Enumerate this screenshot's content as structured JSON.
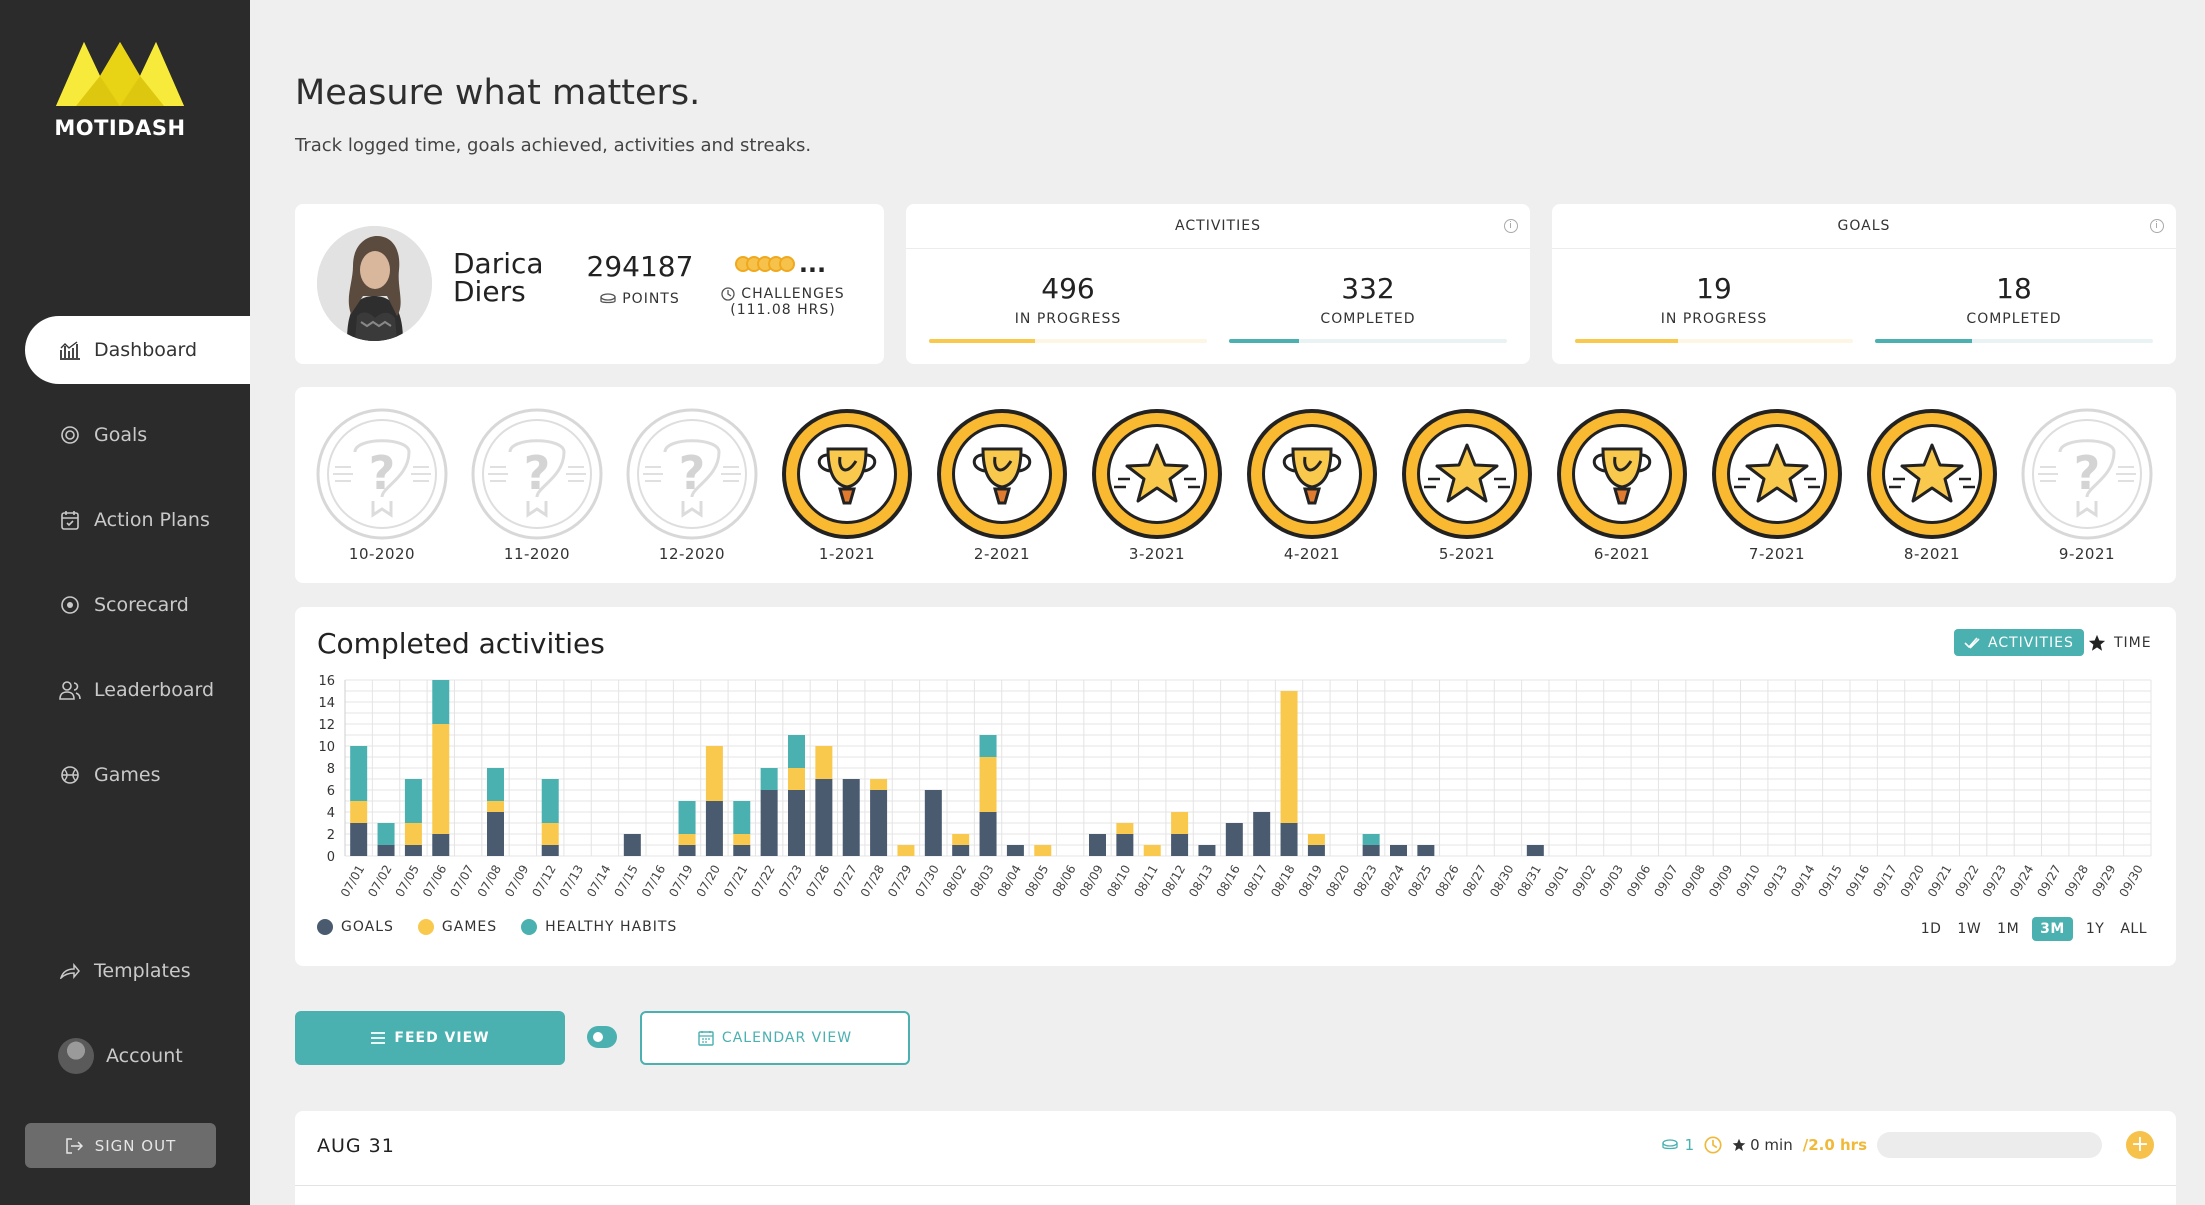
{
  "brand": {
    "name": "MOTIDASH"
  },
  "sidebar": {
    "items": [
      {
        "label": "Dashboard",
        "icon": "chart-icon",
        "active": true
      },
      {
        "label": "Goals",
        "icon": "target-icon",
        "active": false
      },
      {
        "label": "Action Plans",
        "icon": "calendar-check-icon",
        "active": false
      },
      {
        "label": "Scorecard",
        "icon": "scorecard-icon",
        "active": false
      },
      {
        "label": "Leaderboard",
        "icon": "users-icon",
        "active": false
      },
      {
        "label": "Games",
        "icon": "ball-icon",
        "active": false
      }
    ],
    "templates_label": "Templates",
    "account_label": "Account",
    "signout_label": "SIGN OUT"
  },
  "header": {
    "title": "Measure what matters.",
    "subtitle": "Track logged time, goals achieved, activities and streaks."
  },
  "profile": {
    "first_name": "Darica",
    "last_name": "Diers",
    "points": "294187",
    "points_label": "POINTS",
    "challenges_more": "...",
    "challenges_label": "CHALLENGES",
    "challenges_sub": "(111.08 HRS)"
  },
  "activities": {
    "title": "ACTIVITIES",
    "in_progress": "496",
    "in_progress_label": "IN PROGRESS",
    "completed": "332",
    "completed_label": "COMPLETED",
    "in_progress_fill": 0.38,
    "completed_fill": 0.25
  },
  "goals": {
    "title": "GOALS",
    "in_progress": "19",
    "in_progress_label": "IN PROGRESS",
    "completed": "18",
    "completed_label": "COMPLETED",
    "in_progress_fill": 0.37,
    "completed_fill": 0.35
  },
  "badges": [
    {
      "label": "10-2020",
      "type": "locked"
    },
    {
      "label": "11-2020",
      "type": "locked"
    },
    {
      "label": "12-2020",
      "type": "locked"
    },
    {
      "label": "1-2021",
      "type": "trophy"
    },
    {
      "label": "2-2021",
      "type": "trophy"
    },
    {
      "label": "3-2021",
      "type": "star"
    },
    {
      "label": "4-2021",
      "type": "trophy"
    },
    {
      "label": "5-2021",
      "type": "star"
    },
    {
      "label": "6-2021",
      "type": "trophy"
    },
    {
      "label": "7-2021",
      "type": "star"
    },
    {
      "label": "8-2021",
      "type": "star"
    },
    {
      "label": "9-2021",
      "type": "locked"
    }
  ],
  "chart_panel": {
    "title": "Completed activities",
    "toggle_activities": "ACTIVITIES",
    "toggle_time": "TIME",
    "ranges": [
      "1D",
      "1W",
      "1M",
      "3M",
      "1Y",
      "ALL"
    ],
    "active_range": "3M"
  },
  "colors": {
    "goals": "#4a5b70",
    "games": "#f9c94e",
    "healthy_habits": "#4ab0b0",
    "accent": "#4ab0b0"
  },
  "chart_data": {
    "type": "bar",
    "stacked": true,
    "categories": [
      "07/01",
      "07/02",
      "07/05",
      "07/06",
      "07/07",
      "07/08",
      "07/09",
      "07/12",
      "07/13",
      "07/14",
      "07/15",
      "07/16",
      "07/19",
      "07/20",
      "07/21",
      "07/22",
      "07/23",
      "07/26",
      "07/27",
      "07/28",
      "07/29",
      "07/30",
      "08/02",
      "08/03",
      "08/04",
      "08/05",
      "08/06",
      "08/09",
      "08/10",
      "08/11",
      "08/12",
      "08/13",
      "08/16",
      "08/17",
      "08/18",
      "08/19",
      "08/20",
      "08/23",
      "08/24",
      "08/25",
      "08/26",
      "08/27",
      "08/30",
      "08/31",
      "09/01",
      "09/02",
      "09/03",
      "09/06",
      "09/07",
      "09/08",
      "09/09",
      "09/10",
      "09/13",
      "09/14",
      "09/15",
      "09/16",
      "09/17",
      "09/20",
      "09/21",
      "09/22",
      "09/23",
      "09/24",
      "09/27",
      "09/28",
      "09/29",
      "09/30"
    ],
    "series": [
      {
        "name": "GOALS",
        "values": [
          3,
          1,
          1,
          2,
          0,
          4,
          0,
          1,
          0,
          0,
          2,
          0,
          1,
          5,
          1,
          6,
          6,
          7,
          7,
          6,
          0,
          6,
          1,
          4,
          1,
          0,
          0,
          2,
          2,
          0,
          2,
          1,
          3,
          4,
          3,
          1,
          0,
          1,
          1,
          1,
          0,
          0,
          0,
          1,
          0,
          0,
          0,
          0,
          0,
          0,
          0,
          0,
          0,
          0,
          0,
          0,
          0,
          0,
          0,
          0,
          0,
          0,
          0,
          0,
          0,
          0
        ]
      },
      {
        "name": "GAMES",
        "values": [
          2,
          0,
          2,
          10,
          0,
          1,
          0,
          2,
          0,
          0,
          0,
          0,
          1,
          5,
          1,
          0,
          2,
          3,
          0,
          1,
          1,
          0,
          1,
          5,
          0,
          1,
          0,
          0,
          1,
          1,
          2,
          0,
          0,
          0,
          12,
          1,
          0,
          0,
          0,
          0,
          0,
          0,
          0,
          0,
          0,
          0,
          0,
          0,
          0,
          0,
          0,
          0,
          0,
          0,
          0,
          0,
          0,
          0,
          0,
          0,
          0,
          0,
          0,
          0,
          0,
          0
        ]
      },
      {
        "name": "HEALTHY HABITS",
        "values": [
          5,
          2,
          4,
          4,
          0,
          3,
          0,
          4,
          0,
          0,
          0,
          0,
          3,
          0,
          3,
          2,
          3,
          0,
          0,
          0,
          0,
          0,
          0,
          2,
          0,
          0,
          0,
          0,
          0,
          0,
          0,
          0,
          0,
          0,
          0,
          0,
          0,
          1,
          0,
          0,
          0,
          0,
          0,
          0,
          0,
          0,
          0,
          0,
          0,
          0,
          0,
          0,
          0,
          0,
          0,
          0,
          0,
          0,
          0,
          0,
          0,
          0,
          0,
          0,
          0,
          0
        ]
      }
    ],
    "ylim": [
      0,
      16
    ],
    "yticks": [
      0,
      2,
      4,
      6,
      8,
      10,
      12,
      14,
      16
    ],
    "grid": true,
    "legend": "bottom-left"
  },
  "view_buttons": {
    "feed": "FEED VIEW",
    "calendar": "CALENDAR VIEW"
  },
  "feed": {
    "date": "AUG 31",
    "count": "1",
    "minutes": "0 min",
    "hours": "/2.0 hrs"
  }
}
